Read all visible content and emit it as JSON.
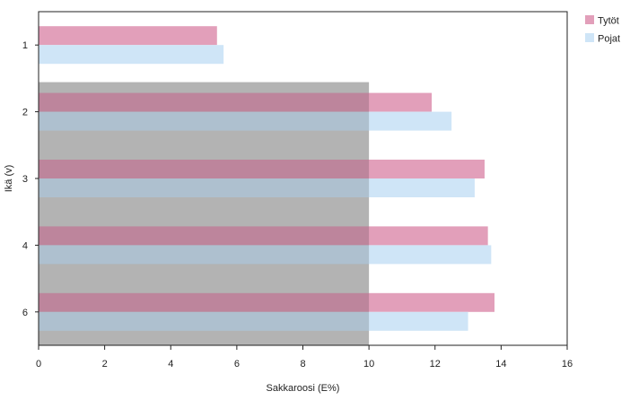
{
  "chart_data": {
    "type": "bar",
    "orientation": "horizontal",
    "categories": [
      "1",
      "2",
      "3",
      "4",
      "6"
    ],
    "series": [
      {
        "name": "Tytöt",
        "color": "#e29fba",
        "values": [
          5.4,
          11.9,
          13.5,
          13.6,
          13.8
        ]
      },
      {
        "name": "Pojat",
        "color": "#cfe5f7",
        "values": [
          5.6,
          12.5,
          13.2,
          13.7,
          13.0
        ]
      }
    ],
    "xlabel": "Sakkaroosi (E%)",
    "ylabel": "Ikä (v)",
    "xlim": [
      0,
      16
    ],
    "xticks": [
      0,
      2,
      4,
      6,
      8,
      10,
      12,
      14,
      16
    ],
    "reference_band": {
      "from": 0,
      "to": 10,
      "categories": [
        "2",
        "3",
        "4",
        "6"
      ],
      "color": "#d6d6d6"
    },
    "grid": false,
    "legend_position": "top-right"
  }
}
